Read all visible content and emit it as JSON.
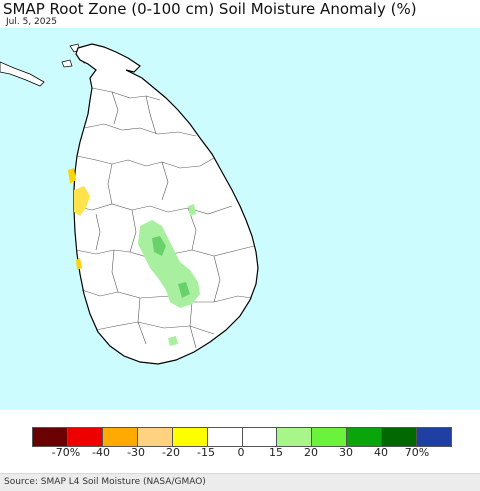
{
  "title": "SMAP Root Zone (0-100 cm) Soil Moisture Anomaly (%)",
  "date": "Jul. 5, 2025",
  "colors": {
    "ocean": "#cdfcff",
    "land": "#ffffff",
    "boundary": "#000000",
    "wet_light": "#a8f0a0",
    "wet_mid": "#6ad06a",
    "dry_light": "#ffe34d",
    "dry_strong": "#ffd400"
  },
  "legend": {
    "swatches": [
      "#6a0000",
      "#ef0000",
      "#ffaa00",
      "#ffd27f",
      "#ffff00",
      "#ffffff",
      "#ffffff",
      "#a8f58a",
      "#6af23c",
      "#0aa50a",
      "#006a00",
      "#1f3fa3"
    ],
    "tick_labels": [
      "-70%",
      "-40",
      "-30",
      "-20",
      "-15",
      "0",
      "15",
      "20",
      "30",
      "40",
      "70%"
    ]
  },
  "source": "Source: SMAP L4 Soil Moisture (NASA/GMAO)"
}
